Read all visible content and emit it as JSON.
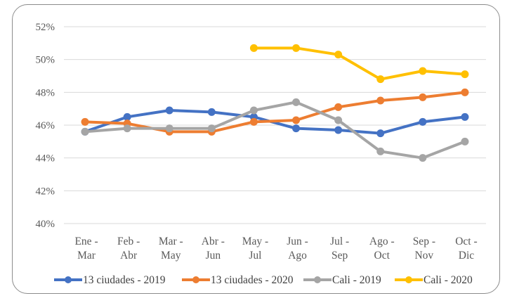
{
  "chart_data": {
    "type": "line",
    "title": "",
    "xlabel": "",
    "ylabel": "",
    "ylim": [
      0.4,
      0.52
    ],
    "yticks": [
      0.4,
      0.42,
      0.44,
      0.46,
      0.48,
      0.5,
      0.52
    ],
    "ytick_labels": [
      "40%",
      "42%",
      "44%",
      "46%",
      "48%",
      "50%",
      "52%"
    ],
    "grid": true,
    "legend_position": "bottom",
    "categories": [
      [
        "Ene -",
        "Mar"
      ],
      [
        "Feb -",
        "Abr"
      ],
      [
        "Mar -",
        "May"
      ],
      [
        "Abr -",
        "Jun"
      ],
      [
        "May -",
        "Jul"
      ],
      [
        "Jun -",
        "Ago"
      ],
      [
        "Jul -",
        "Sep"
      ],
      [
        "Ago -",
        "Oct"
      ],
      [
        "Sep -",
        "Nov"
      ],
      [
        "Oct -",
        "Dic"
      ]
    ],
    "series": [
      {
        "name": "13 ciudades - 2019",
        "color": "#4472C4",
        "values": [
          0.456,
          0.465,
          0.469,
          0.468,
          0.465,
          0.458,
          0.457,
          0.455,
          0.462,
          0.465
        ]
      },
      {
        "name": "13 ciudades - 2020",
        "color": "#ED7D31",
        "values": [
          0.462,
          0.461,
          0.456,
          0.456,
          0.462,
          0.463,
          0.471,
          0.475,
          0.477,
          0.48
        ]
      },
      {
        "name": "Cali - 2019",
        "color": "#A5A5A5",
        "values": [
          0.456,
          0.458,
          0.458,
          0.458,
          0.469,
          0.474,
          0.463,
          0.444,
          0.44,
          0.45
        ]
      },
      {
        "name": "Cali - 2020",
        "color": "#FFC000",
        "values": [
          null,
          null,
          null,
          null,
          0.507,
          0.507,
          0.503,
          0.488,
          0.493,
          0.491
        ]
      }
    ]
  }
}
